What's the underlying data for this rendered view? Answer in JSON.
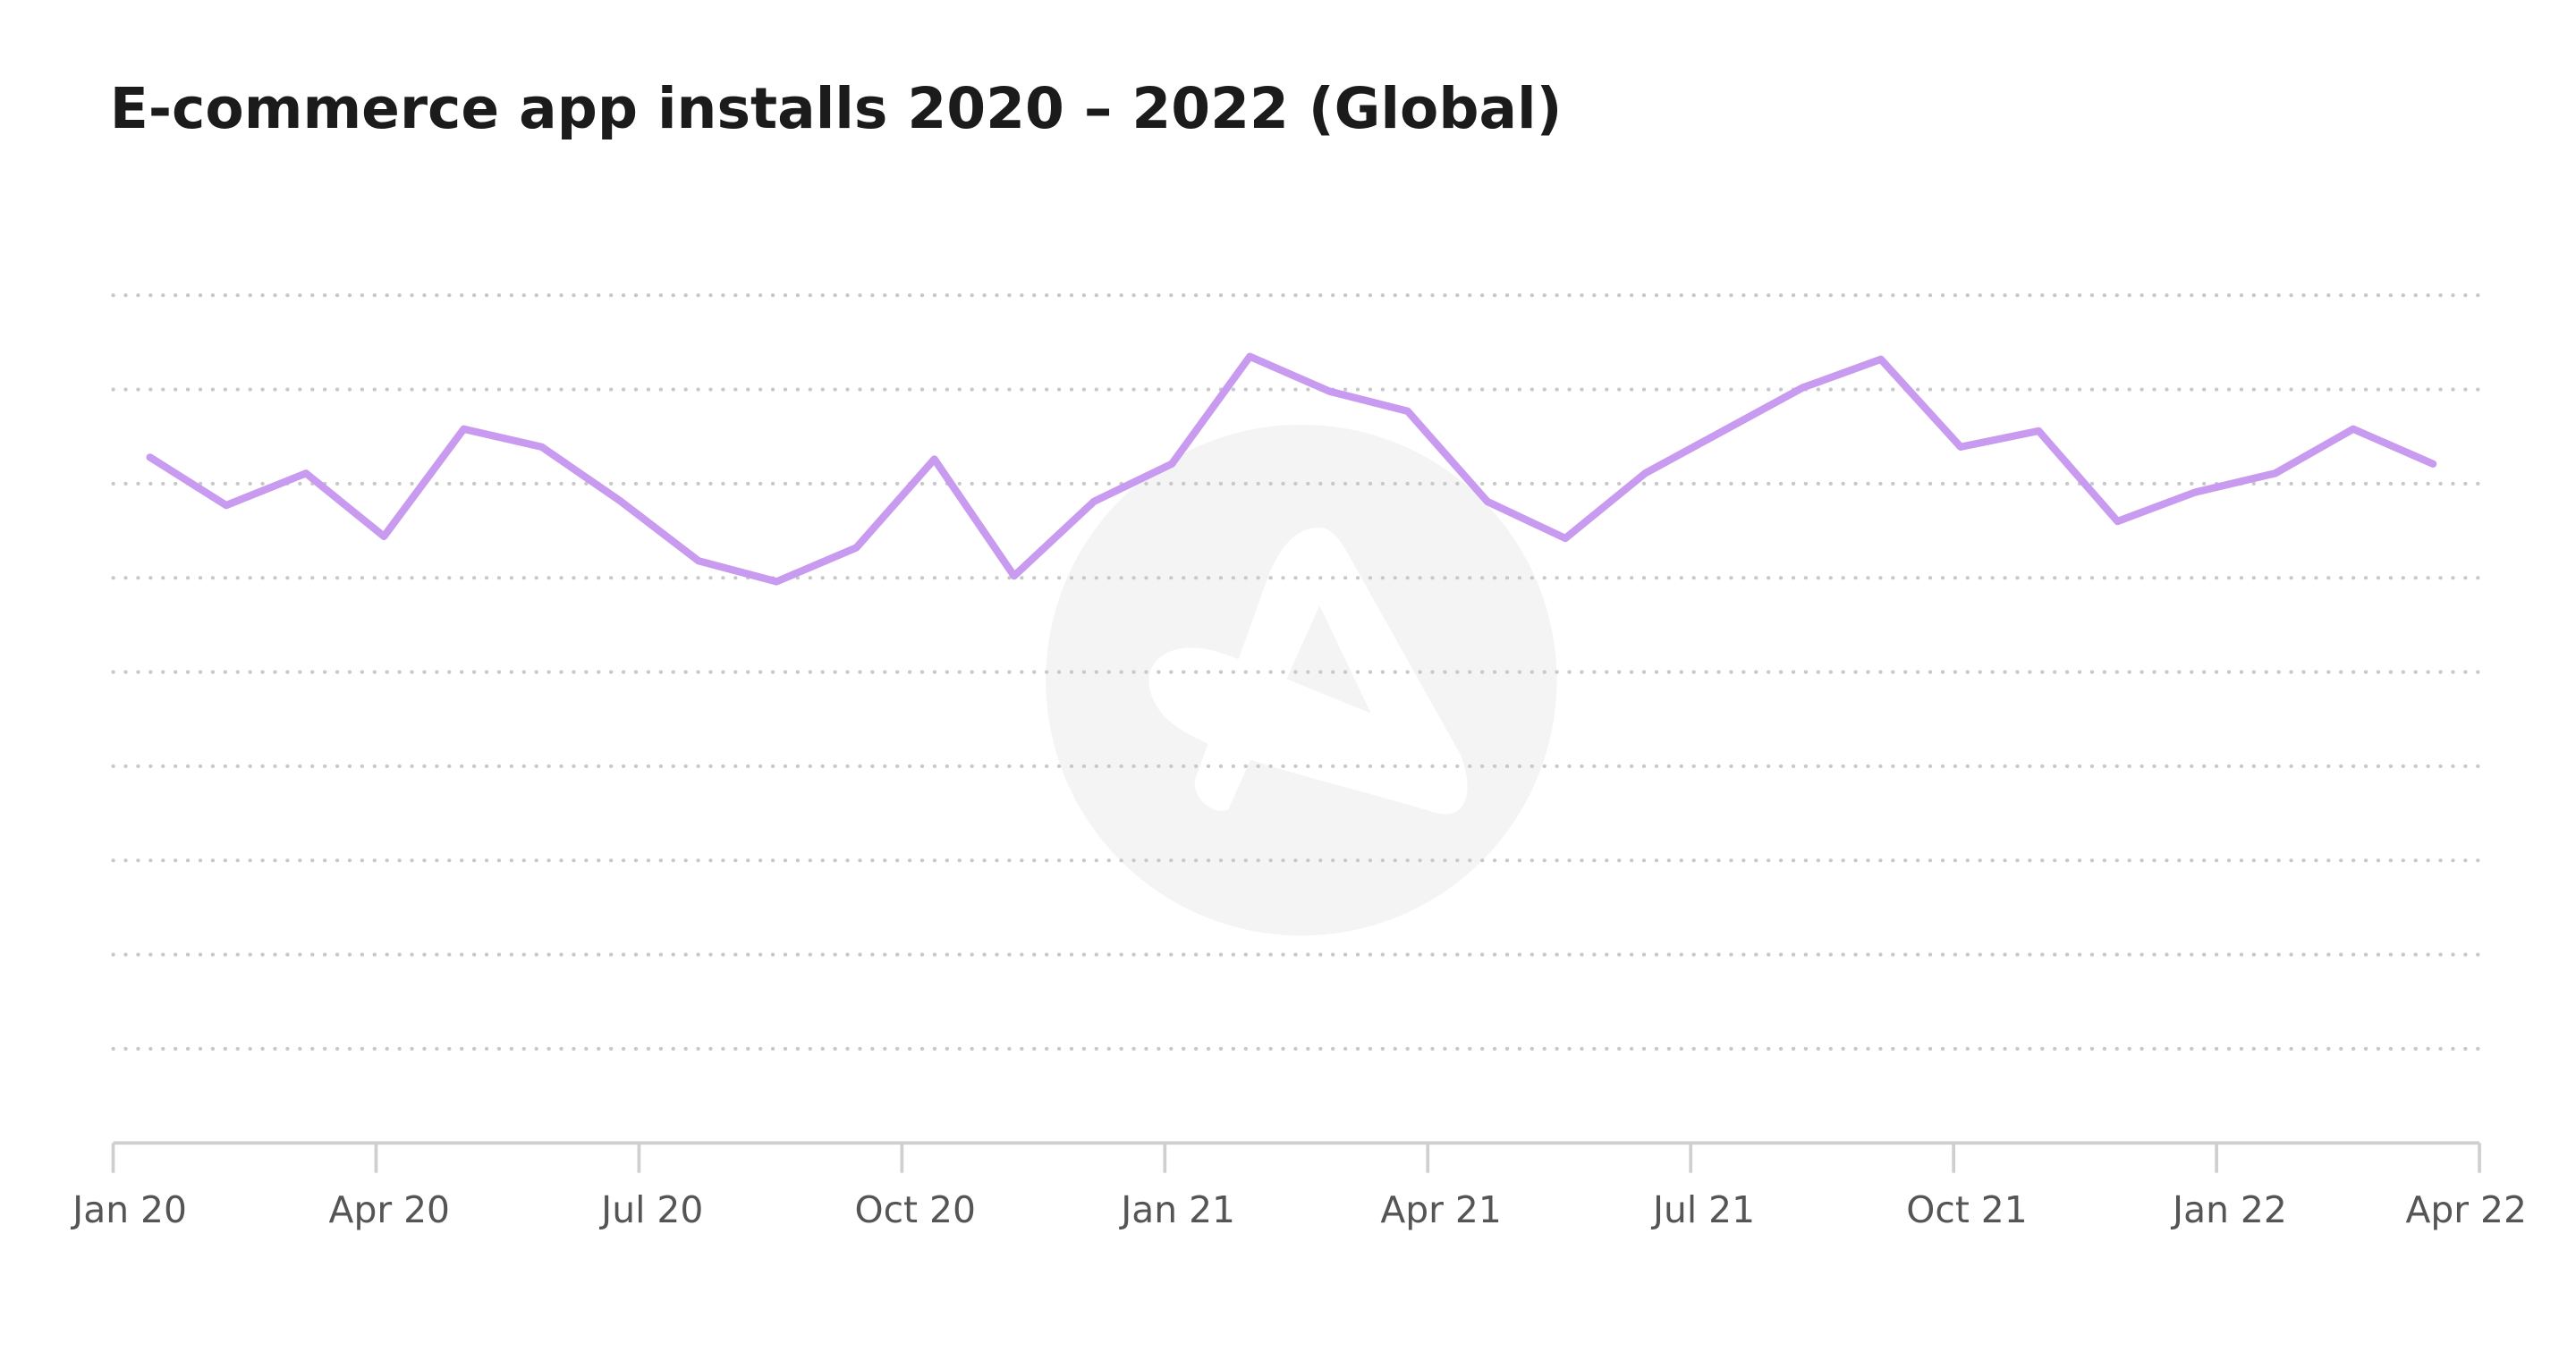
{
  "chart_data": {
    "type": "line",
    "title": "E-commerce app installs 2020 – 2022 (Global)",
    "x": [
      0.42,
      1.29,
      2.2,
      3.09,
      4.0,
      4.89,
      5.78,
      6.68,
      7.57,
      8.48,
      9.37,
      10.28,
      11.19,
      12.08,
      12.97,
      13.88,
      14.77,
      15.68,
      16.57,
      17.48,
      18.37,
      19.28,
      20.17,
      21.08,
      21.97,
      22.87,
      23.76,
      24.67,
      25.56,
      26.47
    ],
    "series": [
      {
        "color": "#c99bf0",
        "values": [
          7.28,
          6.77,
          7.11,
          6.44,
          7.58,
          7.39,
          6.82,
          6.18,
          5.96,
          6.32,
          7.26,
          6.02,
          6.81,
          7.21,
          8.35,
          7.98,
          7.77,
          6.81,
          6.42,
          7.11,
          7.56,
          8.02,
          8.32,
          7.39,
          7.56,
          6.6,
          6.91,
          7.11,
          7.58,
          7.21
        ]
      }
    ],
    "xlim": [
      0,
      27
    ],
    "xticks": [
      {
        "value": 0,
        "label": "Jan 20"
      },
      {
        "value": 3,
        "label": "Apr 20"
      },
      {
        "value": 6,
        "label": "Jul 20"
      },
      {
        "value": 9,
        "label": "Oct 20"
      },
      {
        "value": 12,
        "label": "Jan 21"
      },
      {
        "value": 15,
        "label": "Apr 21"
      },
      {
        "value": 18,
        "label": "Jul 21"
      },
      {
        "value": 21,
        "label": "Oct 21"
      },
      {
        "value": 24,
        "label": "Jan 22"
      },
      {
        "value": 27,
        "label": "Apr 22"
      }
    ],
    "ylim": [
      0,
      9
    ],
    "yticks": [
      1,
      2,
      3,
      4,
      5,
      6,
      7,
      8,
      9
    ],
    "grid": true
  }
}
